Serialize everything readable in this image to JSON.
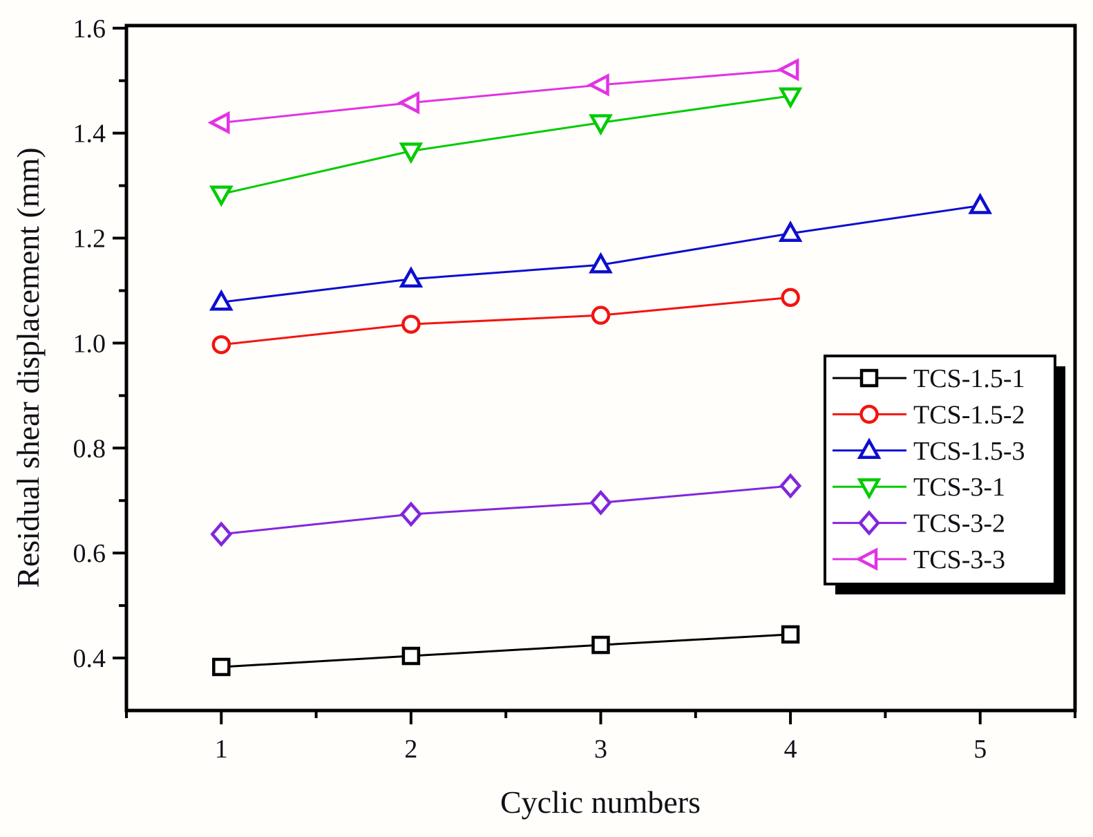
{
  "figure": {
    "background_color": "#fffefb",
    "frame_color": "#000000",
    "text_color": "#101016"
  },
  "chart_data": {
    "type": "line",
    "title": "",
    "xlabel": "Cyclic numbers",
    "ylabel": "Residual shear displacement (mm)",
    "xlim": [
      0.5,
      5.5
    ],
    "ylim": [
      0.3,
      1.605
    ],
    "grid": false,
    "x_ticks": [
      1,
      2,
      3,
      4,
      5
    ],
    "x_minor_ticks": [
      0.5,
      1.5,
      2.5,
      3.5,
      4.5,
      5.5
    ],
    "y_ticks": [
      0.4,
      0.6,
      0.8,
      1.0,
      1.2,
      1.4,
      1.6
    ],
    "y_minor_ticks": [
      0.5,
      0.7,
      0.9,
      1.1,
      1.3,
      1.5
    ],
    "legend_position": "right-middle",
    "legend_has_shadow": true,
    "series": [
      {
        "name": "TCS-1.5-1",
        "color": "#000000",
        "marker": "square",
        "x": [
          1,
          2,
          3,
          4
        ],
        "values": [
          0.383,
          0.404,
          0.425,
          0.445
        ]
      },
      {
        "name": "TCS-1.5-2",
        "color": "#f2140f",
        "marker": "circle",
        "x": [
          1,
          2,
          3,
          4
        ],
        "values": [
          0.997,
          1.036,
          1.053,
          1.087
        ]
      },
      {
        "name": "TCS-1.5-3",
        "color": "#0d0dd0",
        "marker": "triangle-up",
        "x": [
          1,
          2,
          3,
          4,
          5
        ],
        "values": [
          1.078,
          1.122,
          1.149,
          1.209,
          1.262
        ]
      },
      {
        "name": "TCS-3-1",
        "color": "#00cc00",
        "marker": "triangle-down",
        "x": [
          1,
          2,
          3,
          4
        ],
        "values": [
          1.284,
          1.366,
          1.42,
          1.471
        ]
      },
      {
        "name": "TCS-3-2",
        "color": "#8226dd",
        "marker": "diamond",
        "x": [
          1,
          2,
          3,
          4
        ],
        "values": [
          0.636,
          0.674,
          0.696,
          0.728
        ]
      },
      {
        "name": "TCS-3-3",
        "color": "#e332e3",
        "marker": "triangle-left",
        "x": [
          1,
          2,
          3,
          4
        ],
        "values": [
          1.42,
          1.458,
          1.492,
          1.521
        ]
      }
    ]
  }
}
